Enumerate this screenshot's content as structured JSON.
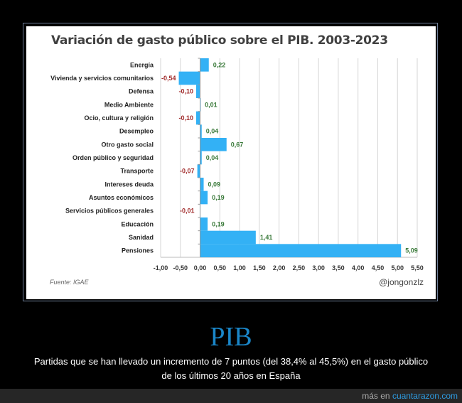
{
  "chart_data": {
    "type": "bar",
    "orientation": "horizontal",
    "title": "Variación de gasto público sobre el PIB. 2003-2023",
    "categories": [
      "Energía",
      "Vivienda y servicios comunitarios",
      "Defensa",
      "Medio Ambiente",
      "Ocio, cultura y religión",
      "Desempleo",
      "Otro gasto social",
      "Orden público y seguridad",
      "Transporte",
      "Intereses deuda",
      "Asuntos económicos",
      "Servicios públicos generales",
      "Educación",
      "Sanidad",
      "Pensiones"
    ],
    "values": [
      0.22,
      -0.54,
      -0.1,
      0.01,
      -0.1,
      0.04,
      0.67,
      0.04,
      -0.07,
      0.09,
      0.19,
      -0.01,
      0.19,
      1.41,
      5.09
    ],
    "value_labels": [
      "0,22",
      "-0,54",
      "-0,10",
      "0,01",
      "-0,10",
      "0,04",
      "0,67",
      "0,04",
      "-0,07",
      "0,09",
      "0,19",
      "-0,01",
      "0,19",
      "1,41",
      "5,09"
    ],
    "xlim": [
      -1.0,
      5.5
    ],
    "xticks": [
      "-1,00",
      "-0,50",
      "0,00",
      "0,50",
      "1,00",
      "1,50",
      "2,00",
      "2,50",
      "3,00",
      "3,50",
      "4,00",
      "4,50",
      "5,00",
      "5,50"
    ],
    "grid": true,
    "colors": {
      "bar": "#33b1f5",
      "positive_label": "#3a7a3a",
      "negative_label": "#a02a2a"
    }
  },
  "source": "Fuente: IGAE",
  "handle": "@jongonzlz",
  "post": {
    "title": "PIB",
    "description_line1": "Partidas que se han llevado un incremento de 7 puntos (del 38,4% al 45,5%) en el gasto público",
    "description_line2": "de los últimos 20 años en España",
    "more_prefix": "más en",
    "more_link": "cuantarazon.com"
  }
}
